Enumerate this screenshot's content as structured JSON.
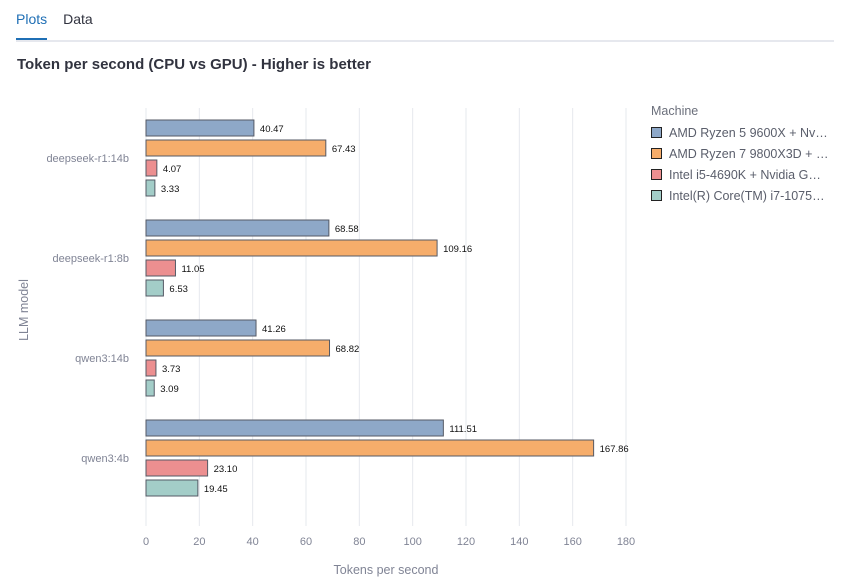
{
  "tabs": [
    {
      "label": "Plots",
      "active": true
    },
    {
      "label": "Data",
      "active": false
    }
  ],
  "chart_data": {
    "type": "bar",
    "orientation": "horizontal",
    "title": "Token per second (CPU vs GPU) - Higher is better",
    "xlabel": "Tokens per second",
    "ylabel": "LLM model",
    "xlim": [
      0,
      180
    ],
    "xticks": [
      0,
      20,
      40,
      60,
      80,
      100,
      120,
      140,
      160,
      180
    ],
    "grid": true,
    "legend_title": "Machine",
    "legend_position": "right",
    "categories": [
      "deepseek-r1:14b",
      "deepseek-r1:8b",
      "qwen3:14b",
      "qwen3:4b"
    ],
    "series": [
      {
        "name": "AMD Ryzen 5 9600X + Nvi…",
        "color": "#8ea8c8",
        "values": [
          40.47,
          68.58,
          41.26,
          111.51
        ],
        "labels": [
          "40.47",
          "68.58",
          "41.26",
          "111.51"
        ]
      },
      {
        "name": "AMD Ryzen 7 9800X3D + …",
        "color": "#f6ad6b",
        "values": [
          67.43,
          109.16,
          68.82,
          167.86
        ],
        "labels": [
          "67.43",
          "109.16",
          "68.82",
          "167.86"
        ]
      },
      {
        "name": "Intel i5-4690K + Nvidia G…",
        "color": "#ec8f90",
        "values": [
          4.07,
          11.05,
          3.73,
          23.1
        ],
        "labels": [
          "4.07",
          "11.05",
          "3.73",
          "23.10"
        ]
      },
      {
        "name": "Intel(R) Core(TM) i7-1075…",
        "color": "#a3cdc8",
        "values": [
          3.33,
          6.53,
          3.09,
          19.45
        ],
        "labels": [
          "3.33",
          "6.53",
          "3.09",
          "19.45"
        ]
      }
    ]
  }
}
